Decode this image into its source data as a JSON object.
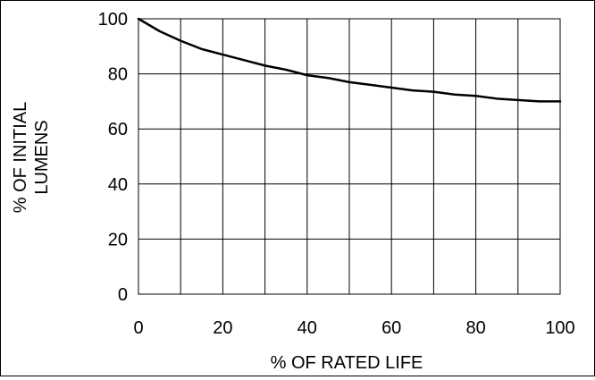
{
  "chart_data": {
    "type": "line",
    "title": "",
    "xlabel": "% OF RATED LIFE",
    "ylabel_lines": [
      "% OF INITIAL",
      "LUMENS"
    ],
    "xlim": [
      0,
      100
    ],
    "ylim": [
      0,
      100
    ],
    "x_ticks": [
      0,
      20,
      40,
      60,
      80,
      100
    ],
    "y_ticks": [
      0,
      20,
      40,
      60,
      80,
      100
    ],
    "x_grid_step": 10,
    "y_grid_step": 20,
    "grid": true,
    "legend": "none",
    "series": [
      {
        "color": "#000000",
        "x": [
          0,
          5,
          10,
          15,
          20,
          25,
          30,
          35,
          40,
          45,
          50,
          55,
          60,
          65,
          70,
          75,
          80,
          85,
          90,
          95,
          100
        ],
        "y": [
          100,
          95.5,
          92,
          89,
          87,
          85,
          83,
          81.5,
          79.5,
          78.5,
          77,
          76,
          75,
          74,
          73.5,
          72.5,
          72,
          71,
          70.5,
          70,
          70
        ]
      }
    ]
  }
}
